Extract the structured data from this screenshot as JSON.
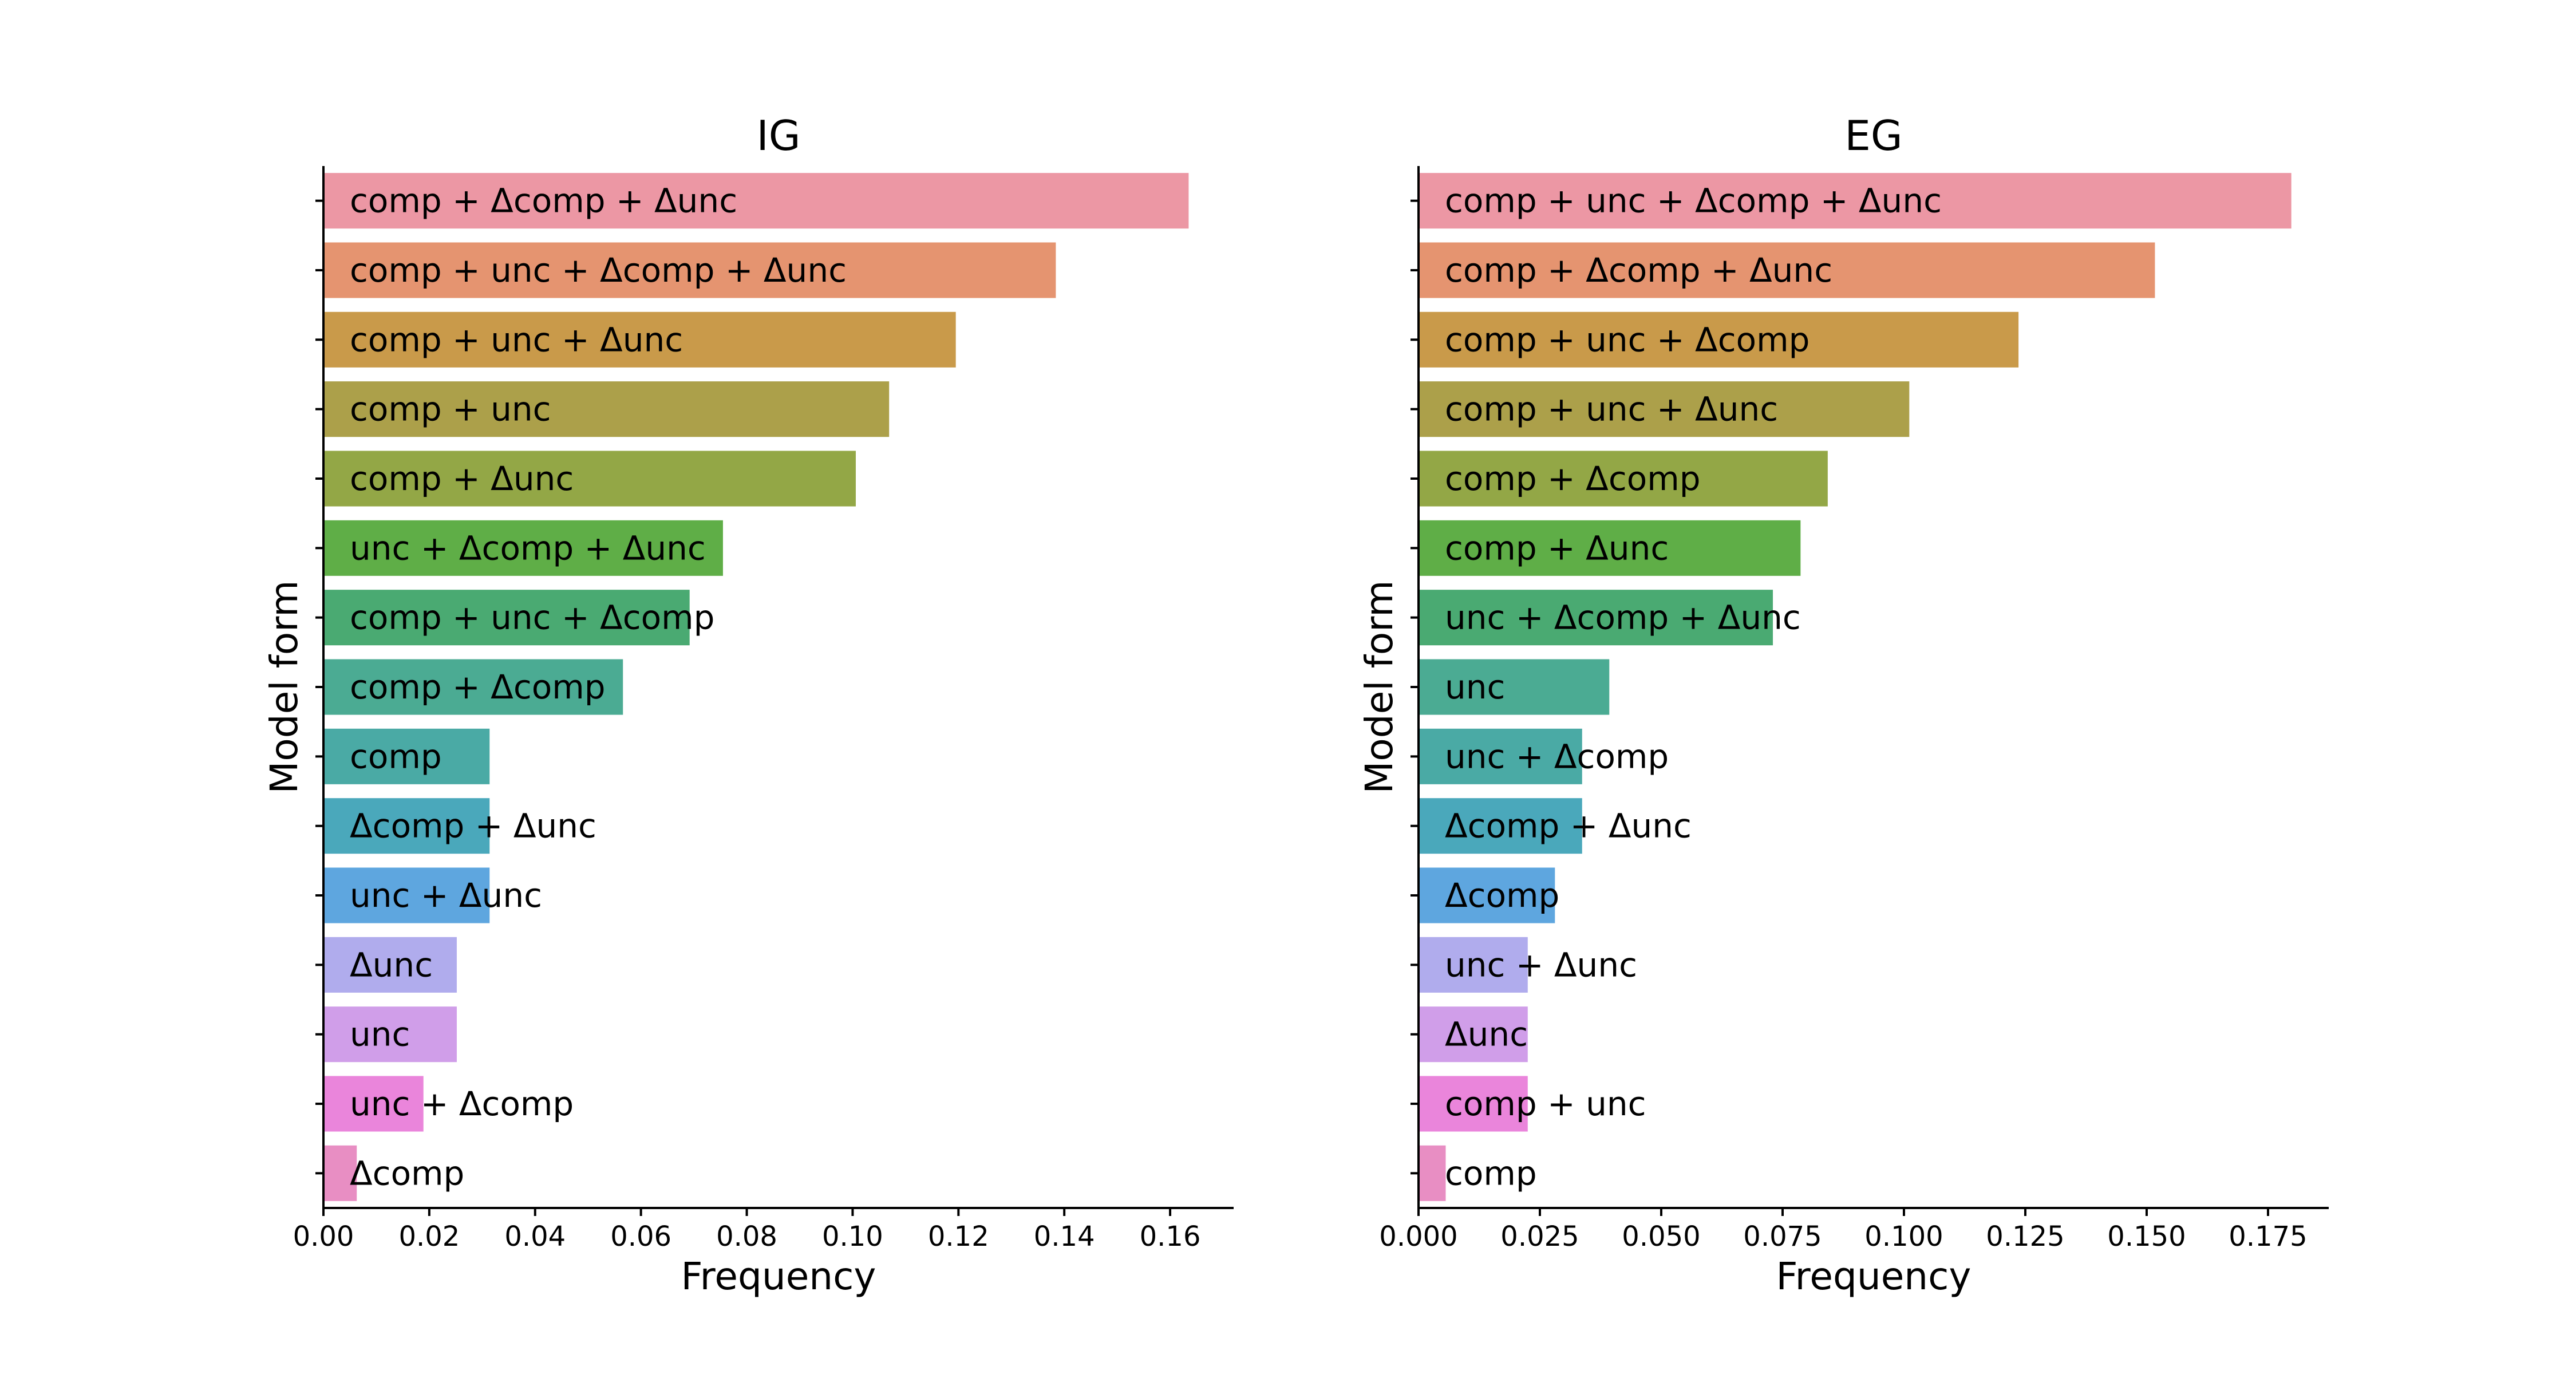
{
  "chart_data": [
    {
      "type": "bar",
      "orientation": "horizontal",
      "title": "IG",
      "xlabel": "Frequency",
      "ylabel": "Model form",
      "xlim": [
        0,
        0.172
      ],
      "xticks": [
        "0.00",
        "0.02",
        "0.04",
        "0.06",
        "0.08",
        "0.10",
        "0.12",
        "0.14",
        "0.16"
      ],
      "categories": [
        "comp + Δcomp + Δunc",
        "comp + unc + Δcomp + Δunc",
        "comp + unc + Δunc",
        "comp + unc",
        "comp + Δunc",
        "unc + Δcomp + Δunc",
        "comp + unc + Δcomp",
        "comp + Δcomp",
        "comp",
        "Δcomp + Δunc",
        "unc + Δunc",
        "Δunc",
        "unc",
        "unc + Δcomp",
        "Δcomp"
      ],
      "values": [
        0.1635,
        0.1384,
        0.1195,
        0.1069,
        0.1006,
        0.0755,
        0.0692,
        0.0566,
        0.0314,
        0.0314,
        0.0314,
        0.0252,
        0.0252,
        0.0189,
        0.0063
      ],
      "colors": [
        "#ec97a4",
        "#e59470",
        "#c99a4a",
        "#aca04a",
        "#93a746",
        "#5fae47",
        "#4aaa72",
        "#4bab93",
        "#4aaaa5",
        "#4aa8bb",
        "#5ea6df",
        "#b0aced",
        "#d09ee9",
        "#ea85db",
        "#e88ec3"
      ],
      "grid": false,
      "legend": "none"
    },
    {
      "type": "bar",
      "orientation": "horizontal",
      "title": "EG",
      "xlabel": "Frequency",
      "ylabel": "Model form",
      "xlim": [
        0,
        0.1875
      ],
      "xticks": [
        "0.000",
        "0.025",
        "0.050",
        "0.075",
        "0.100",
        "0.125",
        "0.150",
        "0.175"
      ],
      "categories": [
        "comp + unc + Δcomp + Δunc",
        "comp + Δcomp + Δunc",
        "comp + unc + Δcomp",
        "comp + unc + Δunc",
        "comp + Δcomp",
        "comp + Δunc",
        "unc + Δcomp + Δunc",
        "unc",
        "unc + Δcomp",
        "Δcomp + Δunc",
        "Δcomp",
        "unc + Δunc",
        "Δunc",
        "comp + unc",
        "comp"
      ],
      "values": [
        0.1798,
        0.1517,
        0.1236,
        0.1011,
        0.0843,
        0.0787,
        0.073,
        0.0393,
        0.0337,
        0.0337,
        0.0281,
        0.0225,
        0.0225,
        0.0225,
        0.0056
      ],
      "colors": [
        "#ec97a4",
        "#e59470",
        "#c99a4a",
        "#aca04a",
        "#93a746",
        "#5fae47",
        "#4aaa72",
        "#4bab93",
        "#4aaaa5",
        "#4aa8bb",
        "#5ea6df",
        "#b0aced",
        "#d09ee9",
        "#ea85db",
        "#e88ec3"
      ],
      "grid": false,
      "legend": "none"
    }
  ]
}
